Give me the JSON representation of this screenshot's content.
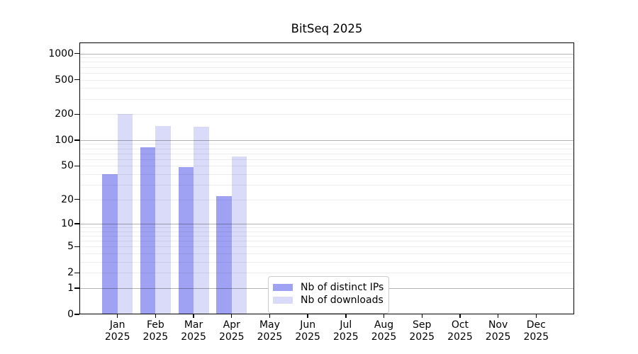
{
  "chart_data": {
    "type": "bar",
    "title": "BitSeq 2025",
    "categories": [
      {
        "month": "Jan",
        "year": "2025"
      },
      {
        "month": "Feb",
        "year": "2025"
      },
      {
        "month": "Mar",
        "year": "2025"
      },
      {
        "month": "Apr",
        "year": "2025"
      },
      {
        "month": "May",
        "year": "2025"
      },
      {
        "month": "Jun",
        "year": "2025"
      },
      {
        "month": "Jul",
        "year": "2025"
      },
      {
        "month": "Aug",
        "year": "2025"
      },
      {
        "month": "Sep",
        "year": "2025"
      },
      {
        "month": "Oct",
        "year": "2025"
      },
      {
        "month": "Nov",
        "year": "2025"
      },
      {
        "month": "Dec",
        "year": "2025"
      }
    ],
    "series": [
      {
        "name": "Nb of distinct IPs",
        "color": "#9fa2f2",
        "values": [
          40,
          83,
          48,
          22,
          0,
          0,
          0,
          0,
          0,
          0,
          0,
          0
        ]
      },
      {
        "name": "Nb of downloads",
        "color": "#d9dbf8",
        "values": [
          200,
          147,
          143,
          65,
          0,
          0,
          0,
          0,
          0,
          0,
          0,
          0
        ]
      }
    ],
    "xlabel": "",
    "ylabel": "",
    "yscale": "log1p",
    "yticks": [
      0,
      1,
      2,
      5,
      10,
      20,
      50,
      100,
      200,
      500,
      1000
    ],
    "major_grid_values": [
      1,
      10,
      100,
      1000
    ],
    "ylim": [
      0,
      1340
    ],
    "xlim": [
      -1,
      12
    ],
    "bar_width": 0.4,
    "grid": "horizontal major+minor, drawn over bars",
    "legend": {
      "position": "lower center"
    }
  }
}
